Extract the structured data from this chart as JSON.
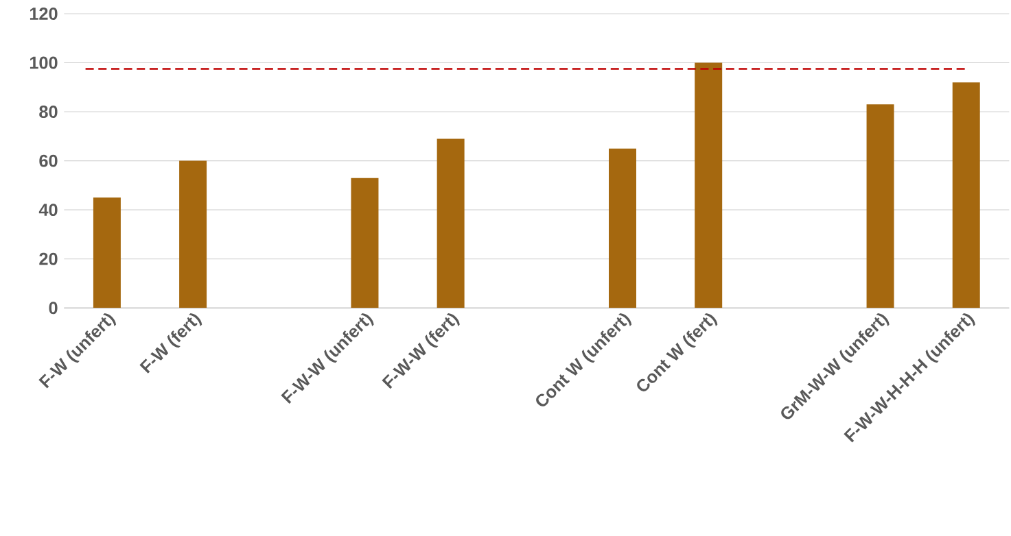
{
  "chart_data": {
    "type": "bar",
    "categories": [
      "F-W (unfert)",
      "F-W (fert)",
      null,
      "F-W-W (unfert)",
      "F-W-W (fert)",
      null,
      "Cont W (unfert)",
      "Cont W (fert)",
      null,
      "GrM-W-W (unfert)",
      "F-W-W-H-H-H (unfert)"
    ],
    "values": [
      45,
      60,
      null,
      53,
      69,
      null,
      65,
      100,
      null,
      83,
      92
    ],
    "color": "#a5680f",
    "ylim": [
      0,
      120
    ],
    "yticks": [
      0,
      20,
      40,
      60,
      80,
      100,
      120
    ],
    "grid": "y",
    "ref_lines": [
      {
        "axis": "y",
        "value": 97.5,
        "color": "#c00000",
        "line_style": "dashed"
      }
    ]
  }
}
